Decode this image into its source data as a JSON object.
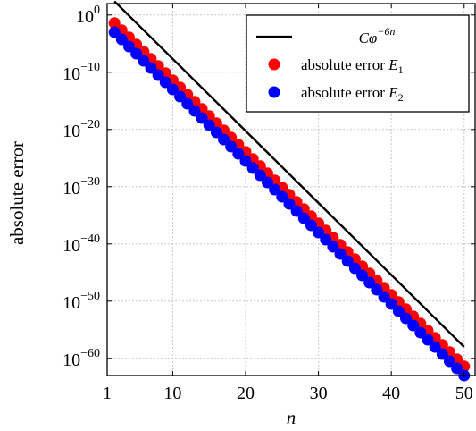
{
  "chart_data": {
    "type": "scatter",
    "title": "",
    "xlabel": "n",
    "ylabel": "absolute error",
    "xlim": [
      1,
      51.5
    ],
    "ylim_log10": [
      -63,
      2
    ],
    "yscale": "log",
    "grid": true,
    "legend_position": "top-right",
    "x_ticks": [
      1,
      10,
      20,
      30,
      40,
      50
    ],
    "x_tick_labels": [
      "1",
      "10",
      "20",
      "30",
      "40",
      "50"
    ],
    "y_ticks_log10": [
      0,
      -10,
      -20,
      -30,
      -40,
      -50,
      -60
    ],
    "y_tick_labels": [
      {
        "base": "10",
        "exp": "0"
      },
      {
        "base": "10",
        "exp": "−10"
      },
      {
        "base": "10",
        "exp": "−20"
      },
      {
        "base": "10",
        "exp": "−30"
      },
      {
        "base": "10",
        "exp": "−40"
      },
      {
        "base": "10",
        "exp": "−50"
      },
      {
        "base": "10",
        "exp": "−60"
      }
    ],
    "series": [
      {
        "name": "Cφ^{−6n}",
        "legend": {
          "base": "Cφ",
          "exp": "−6n"
        },
        "kind": "line",
        "color": "#000000",
        "x": [
          2,
          50
        ],
        "log10_y": [
          2.4,
          -58.0
        ]
      },
      {
        "name": "absolute error E_1",
        "legend": {
          "text": "absolute error ",
          "var": "E",
          "sub": "1"
        },
        "kind": "markers",
        "color": "#ff0000",
        "x_start": 2,
        "x_end": 50,
        "log10_y_start": -1.4,
        "log10_y_end": -61.4
      },
      {
        "name": "absolute error E_2",
        "legend": {
          "text": "absolute error ",
          "var": "E",
          "sub": "2"
        },
        "kind": "markers",
        "color": "#0000ff",
        "x_start": 2,
        "x_end": 50,
        "log10_y_start": -3.0,
        "log10_y_end": -63.0
      }
    ]
  }
}
